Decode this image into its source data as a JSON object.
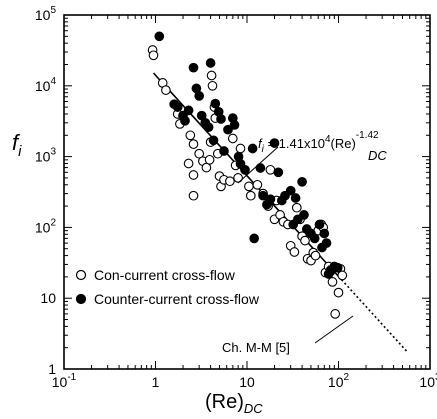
{
  "chart_data": {
    "type": "scatter",
    "title": "",
    "xscale": "log",
    "yscale": "log",
    "xlim": [
      0.1,
      1000
    ],
    "ylim": [
      1,
      100000
    ],
    "grid": false,
    "legend_position": "bottom-left",
    "x_ticks": [
      {
        "value": 0.1,
        "base": "10",
        "exp": "-1"
      },
      {
        "value": 1,
        "plain": "1"
      },
      {
        "value": 10,
        "plain": "10"
      },
      {
        "value": 100,
        "base": "10",
        "exp": "2"
      },
      {
        "value": 1000,
        "base": "10",
        "exp": "3"
      }
    ],
    "y_ticks": [
      {
        "value": 1,
        "plain": "1"
      },
      {
        "value": 10,
        "plain": "10"
      },
      {
        "value": 100,
        "base": "10",
        "exp": "2"
      },
      {
        "value": 1000,
        "base": "10",
        "exp": "3"
      },
      {
        "value": 10000,
        "base": "10",
        "exp": "4"
      },
      {
        "value": 100000,
        "base": "10",
        "exp": "5"
      }
    ],
    "x_axis_label": {
      "main": "(Re)",
      "sub": "DC"
    },
    "y_axis_label": {
      "main": "f",
      "sub": "i"
    },
    "correlation_label": {
      "lhs": "f",
      "lhs_sub": "i",
      "eq": " = 1.41x10",
      "exp1": "4",
      "mid": "(Re)",
      "exp2": "-1.42",
      "sub": "DC"
    },
    "chmm_label": "Ch. M-M [5]",
    "series": [
      {
        "name": "Con-current cross-flow",
        "marker": "open-circle",
        "points": [
          [
            0.93,
            32000
          ],
          [
            0.95,
            27000
          ],
          [
            1.2,
            11000
          ],
          [
            1.3,
            8700
          ],
          [
            1.75,
            4000
          ],
          [
            1.85,
            2900
          ],
          [
            2.4,
            2000
          ],
          [
            2.6,
            1500
          ],
          [
            2.3,
            800
          ],
          [
            2.6,
            550
          ],
          [
            2.6,
            280
          ],
          [
            3.0,
            1100
          ],
          [
            3.3,
            860
          ],
          [
            3.6,
            700
          ],
          [
            3.9,
            900
          ],
          [
            4.0,
            1600
          ],
          [
            4.1,
            14000
          ],
          [
            4.2,
            10000
          ],
          [
            4.4,
            5000
          ],
          [
            4.5,
            3500
          ],
          [
            4.8,
            1100
          ],
          [
            5.0,
            530
          ],
          [
            5.2,
            380
          ],
          [
            5.6,
            470
          ],
          [
            6.5,
            450
          ],
          [
            7.0,
            1800
          ],
          [
            7.5,
            750
          ],
          [
            8.0,
            500
          ],
          [
            8.5,
            1300
          ],
          [
            10.5,
            380
          ],
          [
            11.0,
            280
          ],
          [
            13.0,
            400
          ],
          [
            15.0,
            300
          ],
          [
            17.0,
            200
          ],
          [
            18.0,
            650
          ],
          [
            20.0,
            130
          ],
          [
            21.0,
            240
          ],
          [
            23.0,
            150
          ],
          [
            25.0,
            120
          ],
          [
            28.0,
            110
          ],
          [
            30.0,
            55
          ],
          [
            33.0,
            45
          ],
          [
            35.0,
            190
          ],
          [
            38.0,
            130
          ],
          [
            40.0,
            75
          ],
          [
            43.0,
            65
          ],
          [
            46.0,
            36
          ],
          [
            50.0,
            34
          ],
          [
            53.0,
            44
          ],
          [
            56.0,
            40
          ],
          [
            60.0,
            90
          ],
          [
            65.0,
            110
          ],
          [
            68.0,
            100
          ],
          [
            72.0,
            23
          ],
          [
            78.0,
            28
          ],
          [
            82.0,
            24
          ],
          [
            86.0,
            17
          ],
          [
            92.0,
            6
          ],
          [
            100.0,
            12
          ],
          [
            105.0,
            26
          ],
          [
            110.0,
            21
          ]
        ]
      },
      {
        "name": "Counter-current cross-flow",
        "marker": "filled-circle",
        "points": [
          [
            1.1,
            50000
          ],
          [
            1.6,
            5500
          ],
          [
            1.75,
            5000
          ],
          [
            2.0,
            3800
          ],
          [
            2.1,
            3200
          ],
          [
            2.3,
            4500
          ],
          [
            2.6,
            18000
          ],
          [
            2.8,
            9200
          ],
          [
            3.0,
            7200
          ],
          [
            3.2,
            3800
          ],
          [
            3.5,
            3000
          ],
          [
            3.8,
            2600
          ],
          [
            4.0,
            21000
          ],
          [
            4.3,
            1700
          ],
          [
            4.5,
            5600
          ],
          [
            4.9,
            4300
          ],
          [
            5.2,
            3400
          ],
          [
            5.6,
            1200
          ],
          [
            6.2,
            2400
          ],
          [
            7.0,
            3500
          ],
          [
            7.3,
            2800
          ],
          [
            8.1,
            1000
          ],
          [
            8.5,
            790
          ],
          [
            9.5,
            650
          ],
          [
            11.5,
            1300
          ],
          [
            12.0,
            70
          ],
          [
            14.0,
            690
          ],
          [
            15.0,
            280
          ],
          [
            16.5,
            210
          ],
          [
            18.0,
            250
          ],
          [
            20.0,
            1550
          ],
          [
            22.0,
            600
          ],
          [
            24.0,
            240
          ],
          [
            26.0,
            280
          ],
          [
            30.0,
            330
          ],
          [
            32.0,
            110
          ],
          [
            34.0,
            260
          ],
          [
            36.0,
            130
          ],
          [
            40.0,
            440
          ],
          [
            42.0,
            150
          ],
          [
            45.0,
            95
          ],
          [
            50.0,
            82
          ],
          [
            55.0,
            70
          ],
          [
            62.0,
            110
          ],
          [
            66.0,
            52
          ],
          [
            70.0,
            82
          ],
          [
            74.0,
            60
          ],
          [
            78.0,
            22
          ],
          [
            82.0,
            25
          ],
          [
            90.0,
            28
          ],
          [
            98.0,
            27
          ]
        ]
      }
    ],
    "lines": [
      {
        "name": "correlation",
        "style": "solid",
        "coef": 14100,
        "exp": -1.42,
        "x_range": [
          0.95,
          100
        ]
      },
      {
        "name": "Ch. M-M [5]",
        "style": "dotted",
        "coef": 14100,
        "exp": -1.42,
        "x_range": [
          100,
          560
        ]
      }
    ]
  }
}
